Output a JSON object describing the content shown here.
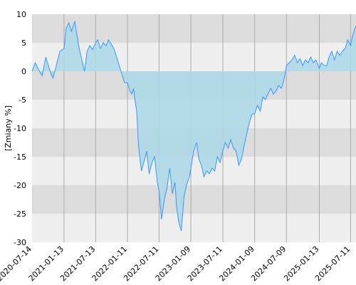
{
  "chart_data": {
    "type": "area",
    "title": "",
    "xlabel": "",
    "ylabel": "[Zmiany %]",
    "ylim": [
      -30,
      10
    ],
    "yticks": [
      10,
      5,
      0,
      -5,
      -10,
      -15,
      -20,
      -25,
      -30
    ],
    "xlim": [
      "2020-07-14",
      "2025-08-11"
    ],
    "xticks": [
      "2020-07-14",
      "2021-01-13",
      "2021-07-13",
      "2022-01-11",
      "2022-07-11",
      "2023-01-09",
      "2023-07-11",
      "2024-01-09",
      "2024-07-09",
      "2025-01-13",
      "2025-07-11"
    ],
    "grid": true,
    "legend": "none",
    "colors": {
      "line": "#3399ff",
      "fill": "#add8e6",
      "band_dark": "#dcdcdc",
      "band_light": "#eeeeee",
      "gridline": "#aaaaaa"
    },
    "series": [
      {
        "x": [
          "2020-07-14",
          "2020-08-01",
          "2020-08-20",
          "2020-09-10",
          "2020-10-01",
          "2020-10-20",
          "2020-11-10",
          "2020-11-30",
          "2020-12-20",
          "2021-01-13",
          "2021-01-25",
          "2021-02-10",
          "2021-02-25",
          "2021-03-15",
          "2021-03-30",
          "2021-04-10",
          "2021-04-25",
          "2021-05-10",
          "2021-05-25",
          "2021-06-10",
          "2021-06-25",
          "2021-07-13",
          "2021-07-25",
          "2021-08-10",
          "2021-08-25",
          "2021-09-10",
          "2021-09-25",
          "2021-10-10",
          "2021-10-25",
          "2021-11-10",
          "2021-11-25",
          "2021-12-10",
          "2021-12-25",
          "2022-01-11",
          "2022-01-25",
          "2022-02-05",
          "2022-02-15",
          "2022-02-25",
          "2022-03-05",
          "2022-03-15",
          "2022-04-01",
          "2022-04-15",
          "2022-05-01",
          "2022-05-15",
          "2022-06-01",
          "2022-06-15",
          "2022-07-01",
          "2022-07-11",
          "2022-07-25",
          "2022-08-10",
          "2022-08-25",
          "2022-09-10",
          "2022-09-25",
          "2022-10-10",
          "2022-10-20",
          "2022-11-01",
          "2022-11-15",
          "2022-12-01",
          "2022-12-15",
          "2023-01-01",
          "2023-01-09",
          "2023-01-25",
          "2023-02-10",
          "2023-02-25",
          "2023-03-10",
          "2023-03-25",
          "2023-04-10",
          "2023-04-25",
          "2023-05-10",
          "2023-05-25",
          "2023-06-10",
          "2023-06-25",
          "2023-07-11",
          "2023-07-25",
          "2023-08-10",
          "2023-08-25",
          "2023-09-10",
          "2023-09-25",
          "2023-10-10",
          "2023-10-25",
          "2023-11-10",
          "2023-11-25",
          "2023-12-10",
          "2023-12-25",
          "2024-01-09",
          "2024-01-25",
          "2024-02-10",
          "2024-02-25",
          "2024-03-10",
          "2024-03-25",
          "2024-04-10",
          "2024-04-25",
          "2024-05-10",
          "2024-05-25",
          "2024-06-10",
          "2024-06-25",
          "2024-07-09",
          "2024-07-25",
          "2024-08-10",
          "2024-08-25",
          "2024-09-10",
          "2024-09-25",
          "2024-10-10",
          "2024-10-25",
          "2024-11-10",
          "2024-11-25",
          "2024-12-10",
          "2024-12-25",
          "2025-01-13",
          "2025-01-25",
          "2025-02-10",
          "2025-02-25",
          "2025-03-10",
          "2025-03-25",
          "2025-04-10",
          "2025-04-25",
          "2025-05-10",
          "2025-05-25",
          "2025-06-10",
          "2025-06-25",
          "2025-07-11",
          "2025-07-25",
          "2025-08-05",
          "2025-08-11"
        ],
        "values": [
          0.0,
          1.5,
          0.3,
          -0.8,
          2.5,
          0.5,
          -1.2,
          1.0,
          3.5,
          4.0,
          7.5,
          8.5,
          7.0,
          8.8,
          6.0,
          4.0,
          2.0,
          0.0,
          3.5,
          4.5,
          3.8,
          5.0,
          5.5,
          4.0,
          5.0,
          4.5,
          5.5,
          4.8,
          4.0,
          2.5,
          1.0,
          -0.5,
          -2.0,
          -2.0,
          -3.5,
          -4.0,
          -3.0,
          -5.5,
          -7.0,
          -13.0,
          -17.5,
          -16.0,
          -14.0,
          -18.0,
          -16.0,
          -15.0,
          -19.5,
          -21.0,
          -26.0,
          -22.5,
          -20.5,
          -17.0,
          -21.5,
          -19.5,
          -24.0,
          -26.5,
          -28.0,
          -22.0,
          -20.0,
          -18.5,
          -17.0,
          -14.0,
          -12.5,
          -15.5,
          -16.5,
          -18.5,
          -17.5,
          -18.0,
          -17.0,
          -17.5,
          -15.0,
          -16.0,
          -14.0,
          -12.5,
          -13.5,
          -12.0,
          -13.5,
          -14.0,
          -16.5,
          -15.5,
          -13.0,
          -11.0,
          -9.0,
          -7.5,
          -7.5,
          -6.0,
          -7.0,
          -4.5,
          -5.0,
          -4.0,
          -3.0,
          -4.0,
          -3.5,
          -2.5,
          -3.0,
          -1.5,
          1.0,
          1.5,
          2.0,
          2.8,
          1.5,
          2.2,
          1.0,
          2.0,
          1.5,
          2.5,
          1.5,
          2.0,
          0.5,
          1.5,
          1.0,
          1.0,
          2.5,
          3.5,
          2.0,
          3.5,
          2.8,
          3.5,
          4.0,
          5.5,
          4.5,
          6.5,
          7.5,
          8.0
        ]
      }
    ]
  }
}
